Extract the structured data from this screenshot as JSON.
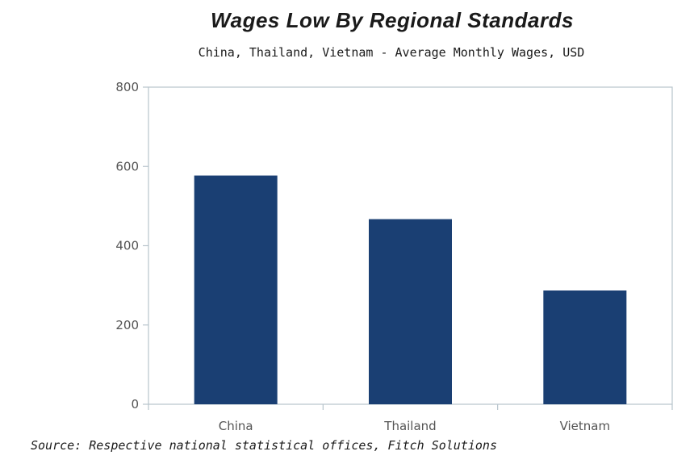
{
  "chart_data": {
    "type": "bar",
    "title": "Wages Low By Regional Standards",
    "subtitle": "China, Thailand, Vietnam - Average Monthly Wages, USD",
    "categories": [
      "China",
      "Thailand",
      "Vietnam"
    ],
    "values": [
      577,
      467,
      287
    ],
    "ylim": [
      0,
      800
    ],
    "yticks": [
      0,
      200,
      400,
      600,
      800
    ],
    "ytick_labels": [
      "0",
      "200",
      "400",
      "600",
      "800"
    ],
    "xlabel": "",
    "ylabel": "",
    "grid": false,
    "source": "Source: Respective national statistical offices, Fitch Solutions",
    "colors": {
      "bar": "#1a3f73",
      "axis": "#b8c4cc",
      "text": "#555555"
    }
  }
}
